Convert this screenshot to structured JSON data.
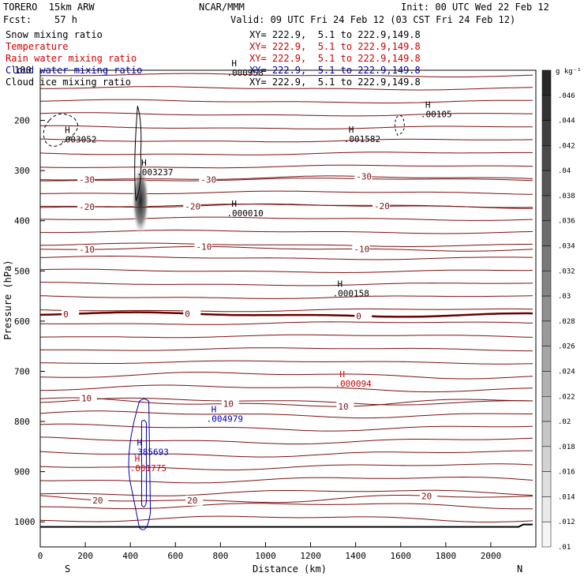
{
  "header": {
    "model": "TORERO  15km ARW",
    "center": "NCAR/MMM",
    "init": "Init: 00 UTC Wed 22 Feb 12",
    "fcst": "Fcst:    57 h",
    "valid": "Valid: 09 UTC Fri 24 Feb 12 (03 CST Fri 24 Feb 12)"
  },
  "legend": {
    "entries": [
      {
        "name": "Snow mixing ratio",
        "xy": "XY= 222.9,  5.1 to 222.9,149.8",
        "color": "#000000"
      },
      {
        "name": "Temperature",
        "xy": "XY= 222.9,  5.1 to 222.9,149.8",
        "color": "#cc0000"
      },
      {
        "name": "Rain water mixing ratio",
        "xy": "XY= 222.9,  5.1 to 222.9,149.8",
        "color": "#cc0000"
      },
      {
        "name": "Cloud water mixing ratio",
        "xy": "XY= 222.9,  5.1 to 222.9,149.8",
        "color": "#0000aa"
      },
      {
        "name": "Cloud ice mixing ratio",
        "xy": "XY= 222.9,  5.1 to 222.9,149.8",
        "color": "#000000"
      }
    ],
    "top_label": "100"
  },
  "colorbar": {
    "unit": "g kg⁻¹",
    "ticks": [
      ".046",
      ".044",
      ".042",
      ".04",
      ".038",
      ".036",
      ".034",
      ".032",
      ".03",
      ".028",
      ".026",
      ".024",
      ".022",
      ".02",
      ".018",
      ".016",
      ".014",
      ".012",
      ".01"
    ]
  },
  "chart_data": {
    "type": "cross-section",
    "xlabel": "Distance (km)",
    "ylabel": "Pressure (hPa)",
    "xlim": [
      0,
      2200
    ],
    "ylim": [
      1050,
      100
    ],
    "x_ticks": [
      0,
      200,
      400,
      600,
      800,
      1000,
      1200,
      1400,
      1600,
      1800,
      2000
    ],
    "y_ticks": [
      200,
      300,
      400,
      500,
      600,
      700,
      800,
      900,
      1000
    ],
    "x_end_labels": {
      "left": "S",
      "right": "N"
    },
    "temperature_contours": [
      {
        "label": "-30",
        "p": 315,
        "labels_at": [
          200,
          740,
          1430
        ]
      },
      {
        "label": "-20",
        "p": 371,
        "labels_at": [
          200,
          670,
          1510
        ]
      },
      {
        "label": "-10",
        "p": 456,
        "labels_at": [
          200,
          720,
          1420
        ]
      },
      {
        "label": "0",
        "p": 587,
        "labels_at": [
          130,
          670,
          1430
        ]
      },
      {
        "label": "10",
        "p": 762,
        "labels_at": [
          210,
          840,
          1350
        ]
      },
      {
        "label": "20",
        "p": 954,
        "labels_at": [
          260,
          680,
          1720
        ]
      }
    ],
    "markers": [
      {
        "text": "H",
        "value": ".003052",
        "x": 60,
        "p": 225,
        "color": "#000000"
      },
      {
        "text": "H",
        "value": ".003237",
        "x": 400,
        "p": 290,
        "color": "#000000"
      },
      {
        "text": "H",
        "value": ".001582",
        "x": 1320,
        "p": 224,
        "color": "#000000"
      },
      {
        "text": "H",
        "value": ".00105",
        "x": 1660,
        "p": 175,
        "color": "#000000"
      },
      {
        "text": "H",
        "value": ".000010",
        "x": 800,
        "p": 372,
        "color": "#000000"
      },
      {
        "text": "H",
        "value": ".000158",
        "x": 1270,
        "p": 532,
        "color": "#000000"
      },
      {
        "text": "H",
        "value": ".000094",
        "x": 1280,
        "p": 712,
        "color": "#cc0000"
      },
      {
        "text": "H",
        "value": ".004979",
        "x": 710,
        "p": 782,
        "color": "#0000aa"
      },
      {
        "text": "H",
        "value": ".385693",
        "x": 380,
        "p": 848,
        "color": "#0000aa"
      },
      {
        "text": "H",
        "value": ".001775",
        "x": 370,
        "p": 880,
        "color": "#cc0000"
      },
      {
        "text": "H",
        "value": ".000958",
        "x": 800,
        "p": 92,
        "color": "#000000"
      }
    ],
    "snow_max_region": {
      "x": [
        420,
        470
      ],
      "p": [
        320,
        400
      ]
    }
  }
}
